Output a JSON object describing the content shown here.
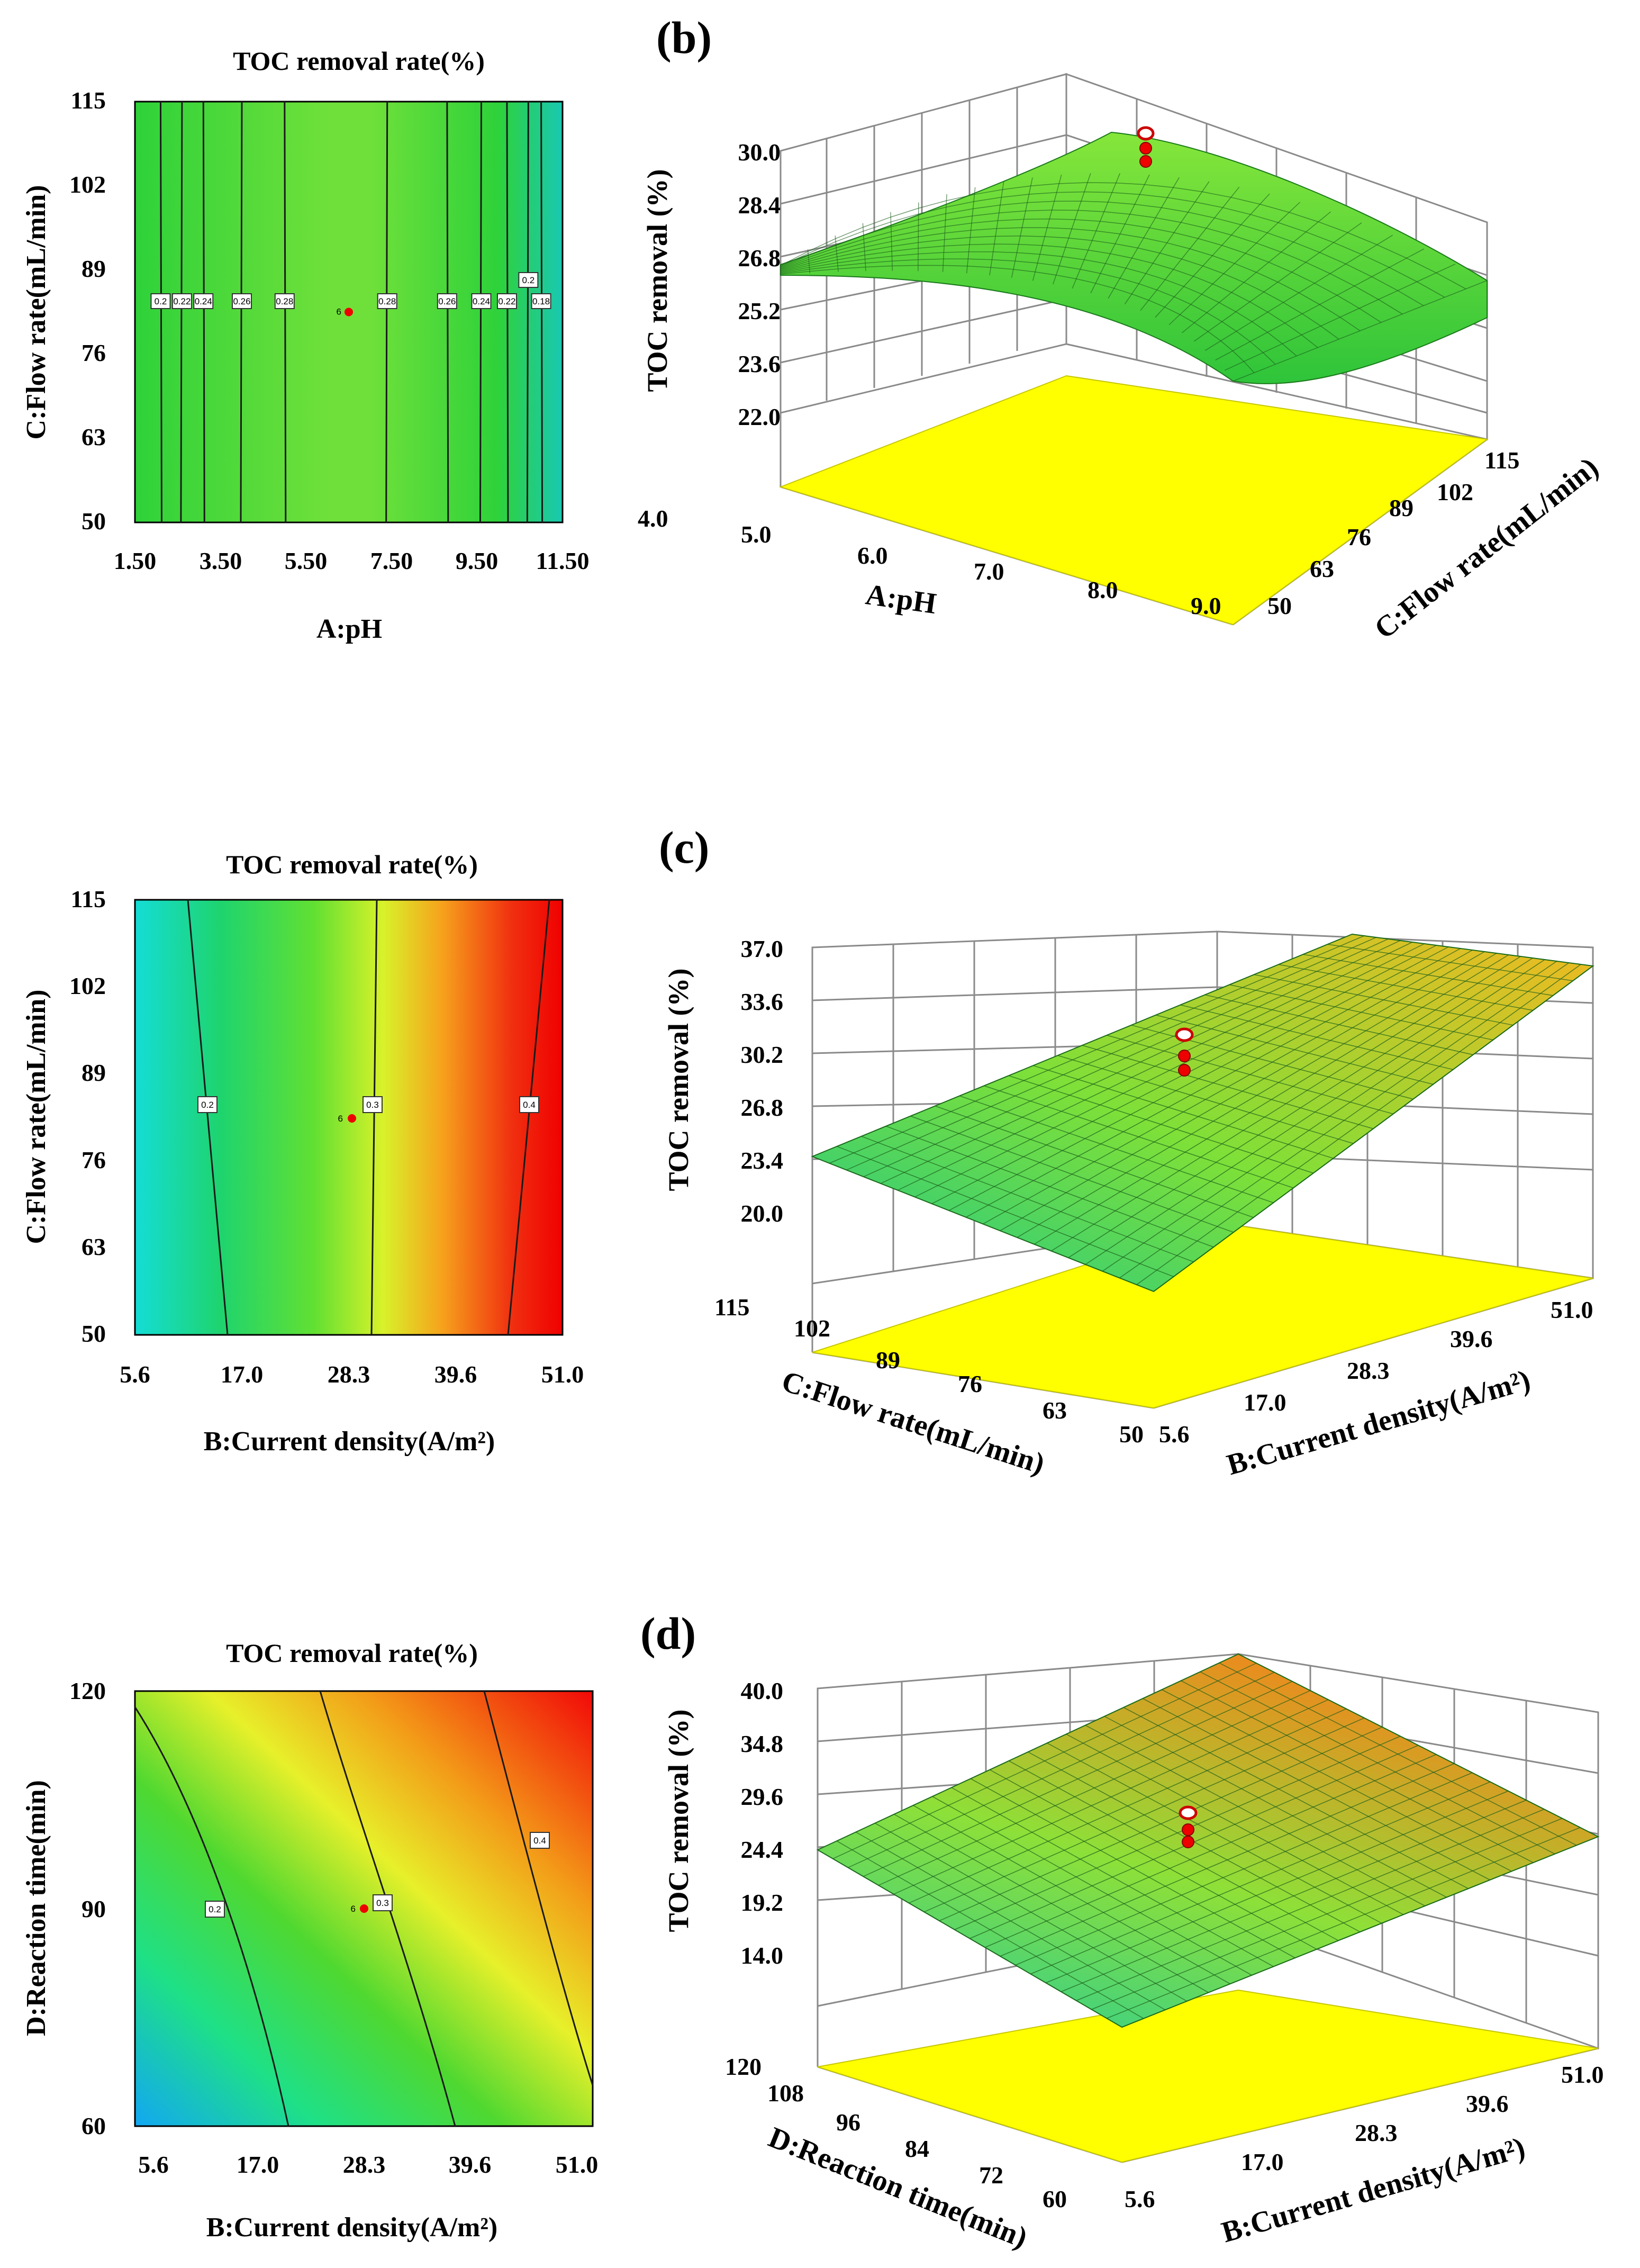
{
  "chart_data": [
    {
      "type": "contour",
      "panel": "a-left",
      "title": "TOC removal rate(%)",
      "xlabel": "A:pH",
      "ylabel": "C:Flow rate(mL/min)",
      "xticks": [
        "1.50",
        "3.50",
        "5.50",
        "7.50",
        "9.50",
        "11.50"
      ],
      "yticks": [
        "50",
        "63",
        "76",
        "89",
        "102",
        "115"
      ],
      "xlim": [
        1.5,
        11.5
      ],
      "ylim": [
        50,
        115
      ],
      "contours": [
        {
          "x": 2.1,
          "label": "0.2"
        },
        {
          "x": 2.6,
          "label": "0.22"
        },
        {
          "x": 3.1,
          "label": "0.24"
        },
        {
          "x": 4.0,
          "label": "0.26"
        },
        {
          "x": 5.0,
          "label": "0.28"
        },
        {
          "x": 7.4,
          "label": "0.28"
        },
        {
          "x": 8.8,
          "label": "0.26"
        },
        {
          "x": 9.6,
          "label": "0.24"
        },
        {
          "x": 10.2,
          "label": "0.22"
        },
        {
          "x": 10.7,
          "label": "0.2"
        },
        {
          "x": 11.0,
          "label": "0.18"
        }
      ],
      "center_point": {
        "x": 6.5,
        "y": 82.5,
        "label": "6"
      }
    },
    {
      "type": "surface3d",
      "panel": "b",
      "panel_label": "(b)",
      "zlabel": "TOC removal (%)",
      "xlabel": "A:pH",
      "ylabel": "C:Flow rate(mL/min)",
      "zticks": [
        "22.0",
        "23.6",
        "25.2",
        "26.8",
        "28.4",
        "30.0"
      ],
      "xticks": [
        "4.0",
        "5.0",
        "6.0",
        "7.0",
        "8.0",
        "9.0"
      ],
      "yticks": [
        "50",
        "63",
        "76",
        "89",
        "102",
        "115"
      ],
      "zlim": [
        22.0,
        30.0
      ]
    },
    {
      "type": "contour",
      "panel": "c-left",
      "title": "TOC removal rate(%)",
      "xlabel": "B:Current density(A/m²)",
      "ylabel": "C:Flow rate(mL/min)",
      "xticks": [
        "5.6",
        "17.0",
        "28.3",
        "39.6",
        "51.0"
      ],
      "yticks": [
        "50",
        "63",
        "76",
        "89",
        "102",
        "115"
      ],
      "xlim": [
        5.6,
        51.0
      ],
      "ylim": [
        50,
        115
      ],
      "contours": [
        {
          "label": "0.2"
        },
        {
          "label": "0.3"
        },
        {
          "label": "0.4"
        }
      ],
      "center_point": {
        "x": 28.3,
        "y": 82.5,
        "label": "6"
      }
    },
    {
      "type": "surface3d",
      "panel": "c",
      "panel_label": "(c)",
      "zlabel": "TOC removal (%)",
      "xlabel": "B:Current density(A/m²)",
      "ylabel": "C:Flow rate(mL/min)",
      "zticks": [
        "20.0",
        "23.4",
        "26.8",
        "30.2",
        "33.6",
        "37.0"
      ],
      "xticks": [
        "5.6",
        "17.0",
        "28.3",
        "39.6",
        "51.0"
      ],
      "yticks": [
        "115",
        "102",
        "89",
        "76",
        "63",
        "50"
      ],
      "zlim": [
        20.0,
        37.0
      ]
    },
    {
      "type": "contour",
      "panel": "d-left",
      "title": "TOC removal rate(%)",
      "xlabel": "B:Current density(A/m²)",
      "ylabel": "D:Reaction time(min)",
      "xticks": [
        "5.6",
        "17.0",
        "28.3",
        "39.6",
        "51.0"
      ],
      "yticks": [
        "60",
        "90",
        "120"
      ],
      "xlim": [
        5.6,
        51.0
      ],
      "ylim": [
        60,
        120
      ],
      "contours": [
        {
          "label": "0.2"
        },
        {
          "label": "0.3"
        },
        {
          "label": "0.4"
        }
      ],
      "center_point": {
        "x": 28.3,
        "y": 90,
        "label": "6"
      }
    },
    {
      "type": "surface3d",
      "panel": "d",
      "panel_label": "(d)",
      "zlabel": "TOC removal (%)",
      "xlabel": "B:Current density(A/m²)",
      "ylabel": "D:Reaction time(min)",
      "zticks": [
        "14.0",
        "19.2",
        "24.4",
        "29.6",
        "34.8",
        "40.0"
      ],
      "xticks": [
        "5.6",
        "17.0",
        "28.3",
        "39.6",
        "51.0"
      ],
      "yticks": [
        "120",
        "108",
        "96",
        "84",
        "72",
        "60"
      ],
      "zlim": [
        14.0,
        40.0
      ]
    }
  ]
}
